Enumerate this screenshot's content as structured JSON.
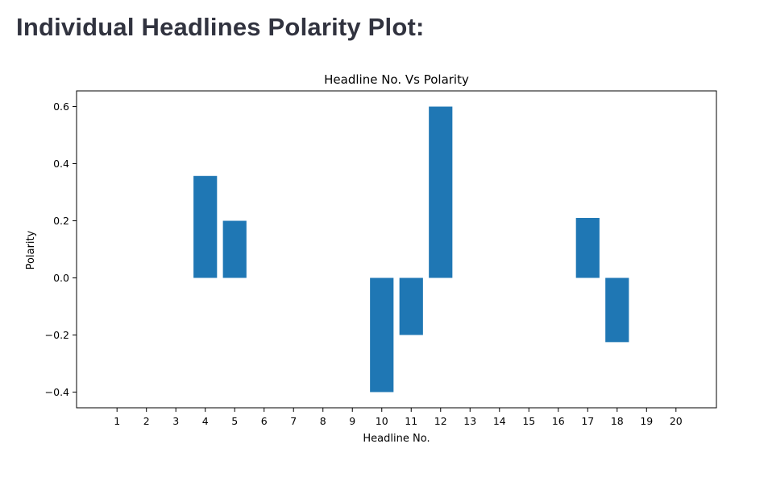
{
  "page": {
    "heading": "Individual Headlines Polarity Plot:"
  },
  "chart_data": {
    "type": "bar",
    "title": "Headline No. Vs Polarity",
    "xlabel": "Headline No.",
    "ylabel": "Polarity",
    "categories": [
      "1",
      "2",
      "3",
      "4",
      "5",
      "6",
      "7",
      "8",
      "9",
      "10",
      "11",
      "12",
      "13",
      "14",
      "15",
      "16",
      "17",
      "18",
      "19",
      "20"
    ],
    "values": [
      0,
      0,
      0,
      0.357,
      0.2,
      0,
      0,
      0,
      0,
      -0.4,
      -0.2,
      0.6,
      0,
      0,
      0,
      0,
      0.21,
      -0.225,
      0,
      0
    ],
    "ylim": [
      -0.455,
      0.655
    ],
    "yticks": [
      0.6,
      0.4,
      0.2,
      0.0,
      -0.2,
      -0.4
    ],
    "ytick_labels": [
      "0.6",
      "0.4",
      "0.2",
      "0.0",
      "−0.2",
      "−0.4"
    ],
    "bar_color": "#1f77b4",
    "grid": false,
    "legend": false
  }
}
